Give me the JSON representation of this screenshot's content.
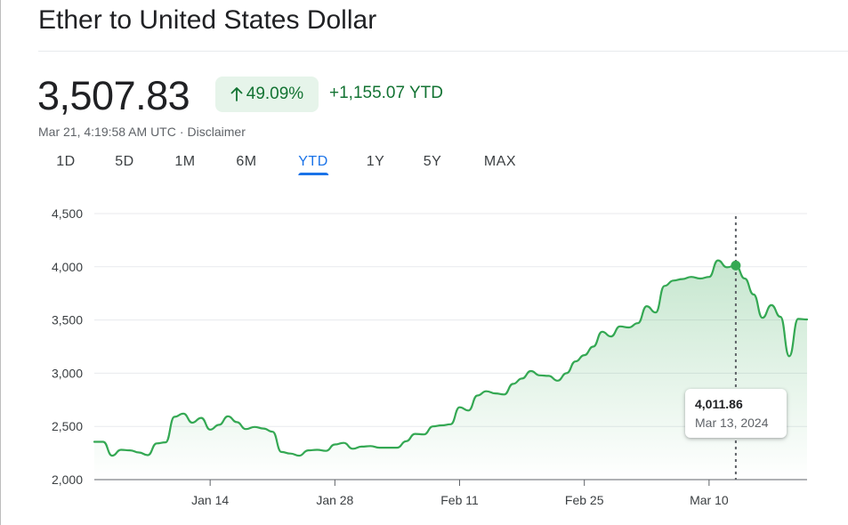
{
  "header": {
    "title": "Ether to United States Dollar",
    "price": "3,507.83",
    "percent_change": "49.09%",
    "absolute_change": "+1,155.07 YTD",
    "timestamp": "Mar 21, 4:19:58 AM UTC",
    "separator": "·",
    "disclaimer": "Disclaimer"
  },
  "ranges": [
    {
      "label": "1D",
      "active": false
    },
    {
      "label": "5D",
      "active": false
    },
    {
      "label": "1M",
      "active": false
    },
    {
      "label": "6M",
      "active": false
    },
    {
      "label": "YTD",
      "active": true
    },
    {
      "label": "1Y",
      "active": false
    },
    {
      "label": "5Y",
      "active": false
    },
    {
      "label": "MAX",
      "active": false
    }
  ],
  "tooltip": {
    "value": "4,011.86",
    "date": "Mar 13, 2024"
  },
  "colors": {
    "positive": "#137333",
    "line": "#34a853",
    "badge_bg": "#e6f4ea",
    "accent": "#1a73e8"
  },
  "chart_data": {
    "type": "area",
    "ylim": [
      2000,
      4500
    ],
    "y_ticks": [
      {
        "value": 2000,
        "label": "2,000"
      },
      {
        "value": 2500,
        "label": "2,500"
      },
      {
        "value": 3000,
        "label": "3,000"
      },
      {
        "value": 3500,
        "label": "3,500"
      },
      {
        "value": 4000,
        "label": "4,000"
      },
      {
        "value": 4500,
        "label": "4,500"
      }
    ],
    "x_ticks": [
      {
        "day": 14,
        "label": "Jan 14"
      },
      {
        "day": 28,
        "label": "Jan 28"
      },
      {
        "day": 42,
        "label": "Feb 11"
      },
      {
        "day": 56,
        "label": "Feb 25"
      },
      {
        "day": 70,
        "label": "Mar 10"
      }
    ],
    "xlim": [
      1,
      81
    ],
    "grid": true,
    "highlight": {
      "day": 73,
      "value": 4011.86
    },
    "series": [
      {
        "points": [
          [
            1,
            2355
          ],
          [
            2,
            2355
          ],
          [
            3,
            2225
          ],
          [
            4,
            2280
          ],
          [
            5,
            2275
          ],
          [
            6,
            2255
          ],
          [
            7,
            2230
          ],
          [
            8,
            2340
          ],
          [
            9,
            2350
          ],
          [
            10,
            2590
          ],
          [
            11,
            2620
          ],
          [
            12,
            2535
          ],
          [
            13,
            2580
          ],
          [
            14,
            2470
          ],
          [
            15,
            2515
          ],
          [
            16,
            2595
          ],
          [
            17,
            2540
          ],
          [
            18,
            2475
          ],
          [
            19,
            2495
          ],
          [
            20,
            2480
          ],
          [
            21,
            2450
          ],
          [
            22,
            2260
          ],
          [
            23,
            2245
          ],
          [
            24,
            2225
          ],
          [
            25,
            2275
          ],
          [
            26,
            2280
          ],
          [
            27,
            2270
          ],
          [
            28,
            2330
          ],
          [
            29,
            2345
          ],
          [
            30,
            2290
          ],
          [
            31,
            2310
          ],
          [
            32,
            2315
          ],
          [
            33,
            2300
          ],
          [
            34,
            2300
          ],
          [
            35,
            2300
          ],
          [
            36,
            2360
          ],
          [
            37,
            2430
          ],
          [
            38,
            2425
          ],
          [
            39,
            2500
          ],
          [
            40,
            2510
          ],
          [
            41,
            2520
          ],
          [
            42,
            2680
          ],
          [
            43,
            2650
          ],
          [
            44,
            2790
          ],
          [
            45,
            2830
          ],
          [
            46,
            2810
          ],
          [
            47,
            2800
          ],
          [
            48,
            2900
          ],
          [
            49,
            2950
          ],
          [
            50,
            3020
          ],
          [
            51,
            2980
          ],
          [
            52,
            2975
          ],
          [
            53,
            2930
          ],
          [
            54,
            3000
          ],
          [
            55,
            3110
          ],
          [
            56,
            3170
          ],
          [
            57,
            3250
          ],
          [
            58,
            3390
          ],
          [
            59,
            3345
          ],
          [
            60,
            3440
          ],
          [
            61,
            3430
          ],
          [
            62,
            3470
          ],
          [
            63,
            3630
          ],
          [
            64,
            3570
          ],
          [
            65,
            3820
          ],
          [
            66,
            3870
          ],
          [
            67,
            3885
          ],
          [
            68,
            3905
          ],
          [
            69,
            3890
          ],
          [
            70,
            3905
          ],
          [
            71,
            4060
          ],
          [
            72,
            3995
          ],
          [
            73,
            4011.86
          ],
          [
            74,
            3890
          ],
          [
            75,
            3740
          ],
          [
            76,
            3520
          ],
          [
            77,
            3640
          ],
          [
            78,
            3530
          ],
          [
            79,
            3160
          ],
          [
            80,
            3510
          ],
          [
            81,
            3505
          ]
        ]
      }
    ]
  }
}
